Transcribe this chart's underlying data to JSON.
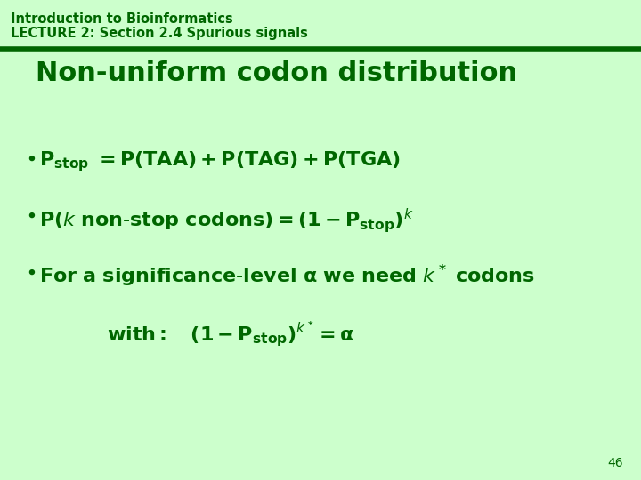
{
  "bg_color": "#ccffcc",
  "divider_color": "#006600",
  "text_color": "#006600",
  "header_line1": "Introduction to Bioinformatics",
  "header_line2": "LECTURE 2: Section 2.4 Spurious signals",
  "title": "Non-uniform codon distribution",
  "slide_number": "46",
  "header_fontsize": 10.5,
  "title_fontsize": 22,
  "bullet_fontsize": 16,
  "number_fontsize": 10
}
